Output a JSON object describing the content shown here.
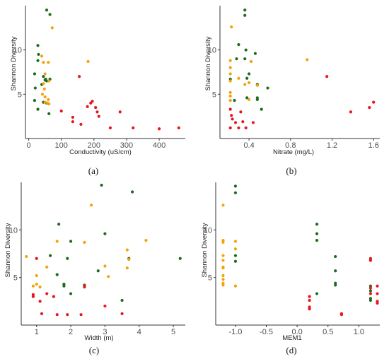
{
  "colors": {
    "green": "#1d6b1d",
    "orange": "#f5a20a",
    "red": "#e8161c"
  },
  "chart_data": [
    {
      "id": "a",
      "type": "scatter",
      "caption": "(a)",
      "xlabel": "Conductivity (uS/cm)",
      "ylabel": "Shannon Diversity",
      "xlim": [
        -10,
        480
      ],
      "ylim": [
        0,
        15
      ],
      "xticks": [
        0,
        100,
        200,
        300,
        400
      ],
      "yticks": [
        5,
        10
      ],
      "series": [
        {
          "color_key": "green",
          "points": [
            [
              55,
              14.5
            ],
            [
              65,
              14
            ],
            [
              28,
              10.5
            ],
            [
              30,
              9.5
            ],
            [
              28,
              8.8
            ],
            [
              18,
              7.3
            ],
            [
              45,
              7
            ],
            [
              52,
              6.7
            ],
            [
              50,
              6.6
            ],
            [
              55,
              6.5
            ],
            [
              65,
              6.7
            ],
            [
              40,
              6.1
            ],
            [
              20,
              5.7
            ],
            [
              18,
              4.3
            ],
            [
              45,
              4.1
            ],
            [
              55,
              4.0
            ],
            [
              28,
              3.3
            ],
            [
              62,
              2.8
            ]
          ]
        },
        {
          "color_key": "orange",
          "points": [
            [
              72,
              12.5
            ],
            [
              40,
              9.3
            ],
            [
              45,
              8.6
            ],
            [
              60,
              8.6
            ],
            [
              182,
              8.7
            ],
            [
              50,
              7.3
            ],
            [
              62,
              6.5
            ],
            [
              45,
              6.2
            ],
            [
              48,
              5.6
            ],
            [
              42,
              5.0
            ],
            [
              50,
              4.7
            ],
            [
              60,
              4.4
            ],
            [
              50,
              4.1
            ],
            [
              58,
              4.0
            ],
            [
              62,
              3.9
            ]
          ]
        },
        {
          "color_key": "red",
          "points": [
            [
              155,
              7.0
            ],
            [
              195,
              4.2
            ],
            [
              190,
              4.0
            ],
            [
              180,
              3.6
            ],
            [
              205,
              3.5
            ],
            [
              210,
              3.0
            ],
            [
              280,
              3.0
            ],
            [
              100,
              3.1
            ],
            [
              135,
              2.4
            ],
            [
              215,
              2.5
            ],
            [
              135,
              1.9
            ],
            [
              160,
              1.6
            ],
            [
              250,
              1.2
            ],
            [
              320,
              1.2
            ],
            [
              400,
              1.1
            ],
            [
              460,
              1.2
            ]
          ]
        }
      ]
    },
    {
      "id": "b",
      "type": "scatter",
      "caption": "(b)",
      "xlabel": "Nitrate (mg/L)",
      "ylabel": "Shannon Diversity",
      "xlim": [
        0.12,
        1.66
      ],
      "ylim": [
        0,
        15
      ],
      "xticks": [
        0.4,
        0.8,
        1.2,
        1.6
      ],
      "xtick_labels": [
        "0.4",
        "0.8",
        "1.2",
        "1.6"
      ],
      "yticks": [
        5,
        10
      ],
      "series": [
        {
          "color_key": "green",
          "points": [
            [
              0.36,
              14.5
            ],
            [
              0.36,
              13.9
            ],
            [
              0.3,
              10.6
            ],
            [
              0.37,
              10.0
            ],
            [
              0.46,
              9.6
            ],
            [
              0.28,
              9.0
            ],
            [
              0.36,
              9.0
            ],
            [
              0.4,
              7.3
            ],
            [
              0.38,
              6.8
            ],
            [
              0.22,
              6.7
            ],
            [
              0.48,
              6.1
            ],
            [
              0.58,
              5.7
            ],
            [
              0.38,
              4.6
            ],
            [
              0.48,
              4.6
            ],
            [
              0.48,
              4.4
            ],
            [
              0.26,
              4.3
            ],
            [
              0.52,
              3.3
            ]
          ]
        },
        {
          "color_key": "orange",
          "points": [
            [
              0.23,
              12.6
            ],
            [
              0.96,
              8.9
            ],
            [
              0.22,
              8.8
            ],
            [
              0.22,
              8.0
            ],
            [
              0.42,
              8.7
            ],
            [
              0.22,
              7.3
            ],
            [
              0.3,
              6.8
            ],
            [
              0.22,
              6.5
            ],
            [
              0.4,
              6.3
            ],
            [
              0.36,
              6.1
            ],
            [
              0.48,
              6.0
            ],
            [
              0.22,
              5.2
            ],
            [
              0.22,
              4.8
            ],
            [
              0.4,
              4.4
            ],
            [
              0.22,
              4.3
            ]
          ]
        },
        {
          "color_key": "red",
          "points": [
            [
              1.15,
              7.0
            ],
            [
              1.6,
              4.1
            ],
            [
              1.56,
              3.5
            ],
            [
              1.38,
              3.0
            ],
            [
              0.32,
              3.0
            ],
            [
              0.22,
              3.3
            ],
            [
              0.23,
              2.6
            ],
            [
              0.24,
              2.2
            ],
            [
              0.34,
              1.9
            ],
            [
              0.44,
              1.8
            ],
            [
              0.27,
              1.8
            ],
            [
              0.22,
              1.2
            ],
            [
              0.3,
              1.2
            ],
            [
              0.37,
              1.2
            ]
          ]
        }
      ]
    },
    {
      "id": "c",
      "type": "scatter",
      "caption": "(c)",
      "xlabel": "Width (m)",
      "ylabel": "Shannon Diversity",
      "xlim": [
        0.55,
        5.35
      ],
      "ylim": [
        0,
        15
      ],
      "xticks": [
        1,
        2,
        3,
        4,
        5
      ],
      "yticks": [
        5,
        10
      ],
      "series": [
        {
          "color_key": "green",
          "points": [
            [
              2.9,
              14.7
            ],
            [
              3.8,
              14.0
            ],
            [
              1.65,
              10.6
            ],
            [
              3.0,
              9.6
            ],
            [
              2.0,
              8.8
            ],
            [
              1.4,
              7.3
            ],
            [
              1.9,
              7.0
            ],
            [
              3.7,
              7.0
            ],
            [
              5.2,
              7.0
            ],
            [
              2.8,
              5.7
            ],
            [
              1.6,
              5.3
            ],
            [
              1.8,
              4.3
            ],
            [
              1.8,
              4.1
            ],
            [
              2.4,
              4.2
            ],
            [
              2.0,
              3.3
            ],
            [
              3.5,
              2.6
            ]
          ]
        },
        {
          "color_key": "orange",
          "points": [
            [
              2.6,
              12.6
            ],
            [
              4.2,
              8.9
            ],
            [
              1.6,
              8.8
            ],
            [
              2.4,
              8.7
            ],
            [
              0.7,
              7.2
            ],
            [
              3.65,
              7.9
            ],
            [
              3.7,
              6.9
            ],
            [
              3.65,
              6.0
            ],
            [
              1.3,
              6.1
            ],
            [
              3.0,
              6.2
            ],
            [
              1.0,
              5.2
            ],
            [
              0.9,
              4.1
            ],
            [
              1.0,
              4.3
            ],
            [
              1.1,
              4.0
            ],
            [
              3.1,
              5.1
            ]
          ]
        },
        {
          "color_key": "red",
          "points": [
            [
              1.0,
              7.0
            ],
            [
              2.4,
              4.1
            ],
            [
              1.3,
              3.3
            ],
            [
              0.9,
              3.2
            ],
            [
              0.9,
              3.0
            ],
            [
              1.5,
              3.0
            ],
            [
              1.1,
              2.5
            ],
            [
              2.4,
              4.0
            ],
            [
              3.0,
              2.0
            ],
            [
              3.5,
              1.2
            ],
            [
              1.6,
              1.1
            ],
            [
              1.9,
              1.1
            ],
            [
              2.3,
              1.1
            ],
            [
              1.15,
              1.2
            ]
          ]
        }
      ]
    },
    {
      "id": "d",
      "type": "scatter",
      "caption": "(d)",
      "xlabel": "MEM1",
      "ylabel": "Shannon Diversity",
      "xlim": [
        -1.32,
        1.34
      ],
      "ylim": [
        0,
        15
      ],
      "xticks": [
        -1.0,
        -0.5,
        0.0,
        0.5,
        1.0
      ],
      "xtick_labels": [
        "-1.0",
        "-0.5",
        "0.0",
        "0.5",
        "1.0"
      ],
      "yticks": [
        5,
        10
      ],
      "series": [
        {
          "color_key": "green",
          "points": [
            [
              -1.0,
              14.6
            ],
            [
              -1.0,
              13.9
            ],
            [
              -1.0,
              7.3
            ],
            [
              -1.0,
              6.7
            ],
            [
              0.32,
              10.6
            ],
            [
              0.32,
              9.6
            ],
            [
              0.32,
              8.9
            ],
            [
              0.62,
              7.2
            ],
            [
              0.62,
              5.7
            ],
            [
              0.62,
              4.4
            ],
            [
              0.62,
              4.2
            ],
            [
              0.32,
              3.3
            ],
            [
              1.19,
              6.8
            ],
            [
              1.19,
              4.1
            ],
            [
              1.19,
              3.6
            ],
            [
              1.19,
              2.8
            ],
            [
              1.19,
              2.6
            ]
          ]
        },
        {
          "color_key": "orange",
          "points": [
            [
              -1.2,
              12.6
            ],
            [
              -1.2,
              8.9
            ],
            [
              -1.2,
              8.7
            ],
            [
              -1.2,
              7.3
            ],
            [
              -1.2,
              6.8
            ],
            [
              -1.2,
              6.1
            ],
            [
              -1.2,
              6.0
            ],
            [
              -1.2,
              5.2
            ],
            [
              -1.2,
              4.8
            ],
            [
              -1.2,
              4.4
            ],
            [
              -1.2,
              4.2
            ],
            [
              -1.0,
              8.8
            ],
            [
              -1.0,
              8.0
            ],
            [
              -1.0,
              4.1
            ]
          ]
        },
        {
          "color_key": "red",
          "points": [
            [
              1.19,
              7.0
            ],
            [
              1.19,
              6.8
            ],
            [
              1.19,
              3.9
            ],
            [
              1.19,
              3.3
            ],
            [
              1.3,
              4.1
            ],
            [
              1.3,
              3.3
            ],
            [
              1.3,
              2.5
            ],
            [
              1.3,
              2.3
            ],
            [
              0.2,
              3.0
            ],
            [
              0.2,
              2.6
            ],
            [
              0.2,
              1.9
            ],
            [
              0.2,
              1.7
            ],
            [
              0.72,
              1.2
            ],
            [
              0.72,
              1.1
            ]
          ]
        }
      ]
    }
  ]
}
